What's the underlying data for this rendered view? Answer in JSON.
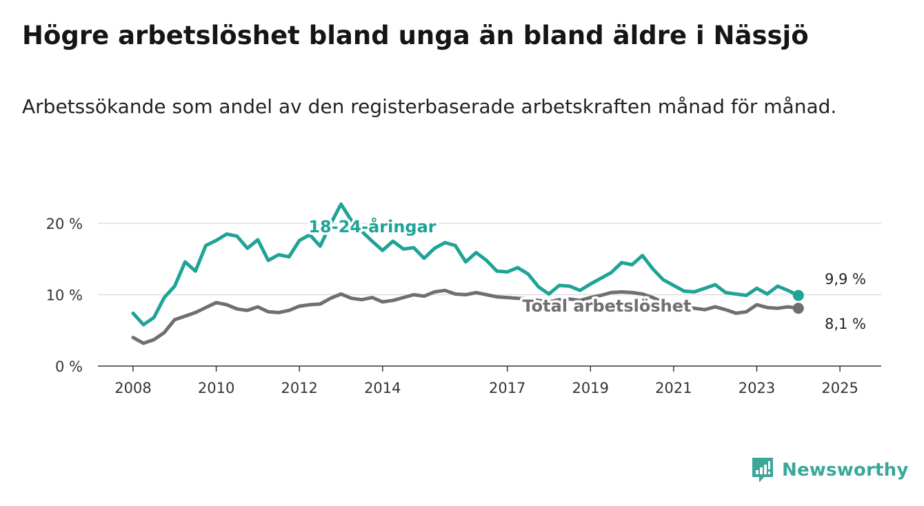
{
  "header": {
    "title": "Högre arbetslöshet bland unga än bland äldre i Nässjö",
    "subtitle": "Arbetssökande som andel av den registerbaserade arbetskraften månad för månad."
  },
  "brand": {
    "name": "Newsworthy",
    "icon": "newsworthy-logo-icon",
    "color": "#3aa79a"
  },
  "chart_data": {
    "type": "line",
    "title": "Högre arbetslöshet bland unga än bland äldre i Nässjö",
    "subtitle": "Arbetssökande som andel av den registerbaserade arbetskraften månad för månad.",
    "xlabel": "",
    "ylabel": "",
    "x_ticks": [
      "2008",
      "2010",
      "2012",
      "2014",
      "2017",
      "2019",
      "2021",
      "2023",
      "2025"
    ],
    "y_ticks": [
      "0 %",
      "10 %",
      "20 %"
    ],
    "ylim": [
      0,
      23
    ],
    "xlim": [
      "2007-05",
      "2025-12"
    ],
    "grid": "horizontal",
    "legend": "inline labels",
    "series": [
      {
        "name": "18-24-åringar",
        "color": "#1fa396",
        "end_label": "9,9 %",
        "points": [
          [
            "2008-01",
            7.4
          ],
          [
            "2008-04",
            5.8
          ],
          [
            "2008-07",
            6.8
          ],
          [
            "2008-10",
            9.6
          ],
          [
            "2009-01",
            11.2
          ],
          [
            "2009-04",
            14.6
          ],
          [
            "2009-07",
            13.3
          ],
          [
            "2009-10",
            16.9
          ],
          [
            "2010-01",
            17.6
          ],
          [
            "2010-04",
            18.5
          ],
          [
            "2010-07",
            18.2
          ],
          [
            "2010-10",
            16.5
          ],
          [
            "2011-01",
            17.7
          ],
          [
            "2011-04",
            14.8
          ],
          [
            "2011-07",
            15.6
          ],
          [
            "2011-10",
            15.3
          ],
          [
            "2012-01",
            17.6
          ],
          [
            "2012-04",
            18.4
          ],
          [
            "2012-07",
            16.8
          ],
          [
            "2012-10",
            19.9
          ],
          [
            "2013-01",
            22.7
          ],
          [
            "2013-04",
            20.4
          ],
          [
            "2013-07",
            18.9
          ],
          [
            "2013-10",
            17.5
          ],
          [
            "2014-01",
            16.2
          ],
          [
            "2014-04",
            17.5
          ],
          [
            "2014-07",
            16.4
          ],
          [
            "2014-10",
            16.6
          ],
          [
            "2015-01",
            15.1
          ],
          [
            "2015-04",
            16.5
          ],
          [
            "2015-07",
            17.3
          ],
          [
            "2015-10",
            16.9
          ],
          [
            "2016-01",
            14.6
          ],
          [
            "2016-04",
            15.9
          ],
          [
            "2016-07",
            14.8
          ],
          [
            "2016-10",
            13.3
          ],
          [
            "2017-01",
            13.2
          ],
          [
            "2017-04",
            13.8
          ],
          [
            "2017-07",
            12.9
          ],
          [
            "2017-10",
            11.1
          ],
          [
            "2018-01",
            10.1
          ],
          [
            "2018-04",
            11.3
          ],
          [
            "2018-07",
            11.2
          ],
          [
            "2018-10",
            10.6
          ],
          [
            "2019-01",
            11.5
          ],
          [
            "2019-04",
            12.3
          ],
          [
            "2019-07",
            13.1
          ],
          [
            "2019-10",
            14.5
          ],
          [
            "2020-01",
            14.2
          ],
          [
            "2020-04",
            15.5
          ],
          [
            "2020-07",
            13.6
          ],
          [
            "2020-10",
            12.1
          ],
          [
            "2021-01",
            11.3
          ],
          [
            "2021-04",
            10.5
          ],
          [
            "2021-07",
            10.4
          ],
          [
            "2021-10",
            10.9
          ],
          [
            "2022-01",
            11.4
          ],
          [
            "2022-04",
            10.3
          ],
          [
            "2022-07",
            10.1
          ],
          [
            "2022-10",
            9.9
          ],
          [
            "2023-01",
            10.9
          ],
          [
            "2023-04",
            10.1
          ],
          [
            "2023-07",
            11.2
          ],
          [
            "2023-10",
            10.6
          ],
          [
            "2024-01",
            9.9
          ]
        ]
      },
      {
        "name": "Total arbetslöshet",
        "color": "#6e6e73",
        "end_label": "8,1 %",
        "points": [
          [
            "2008-01",
            4.0
          ],
          [
            "2008-04",
            3.2
          ],
          [
            "2008-07",
            3.7
          ],
          [
            "2008-10",
            4.7
          ],
          [
            "2009-01",
            6.5
          ],
          [
            "2009-04",
            7.0
          ],
          [
            "2009-07",
            7.5
          ],
          [
            "2009-10",
            8.2
          ],
          [
            "2010-01",
            8.9
          ],
          [
            "2010-04",
            8.6
          ],
          [
            "2010-07",
            8.0
          ],
          [
            "2010-10",
            7.8
          ],
          [
            "2011-01",
            8.3
          ],
          [
            "2011-04",
            7.6
          ],
          [
            "2011-07",
            7.5
          ],
          [
            "2011-10",
            7.8
          ],
          [
            "2012-01",
            8.4
          ],
          [
            "2012-04",
            8.6
          ],
          [
            "2012-07",
            8.7
          ],
          [
            "2012-10",
            9.5
          ],
          [
            "2013-01",
            10.1
          ],
          [
            "2013-04",
            9.5
          ],
          [
            "2013-07",
            9.3
          ],
          [
            "2013-10",
            9.6
          ],
          [
            "2014-01",
            9.0
          ],
          [
            "2014-04",
            9.2
          ],
          [
            "2014-07",
            9.6
          ],
          [
            "2014-10",
            10.0
          ],
          [
            "2015-01",
            9.8
          ],
          [
            "2015-04",
            10.4
          ],
          [
            "2015-07",
            10.6
          ],
          [
            "2015-10",
            10.1
          ],
          [
            "2016-01",
            10.0
          ],
          [
            "2016-04",
            10.3
          ],
          [
            "2016-07",
            10.0
          ],
          [
            "2016-10",
            9.7
          ],
          [
            "2017-01",
            9.6
          ],
          [
            "2017-04",
            9.5
          ],
          [
            "2017-07",
            9.4
          ],
          [
            "2017-10",
            9.2
          ],
          [
            "2018-01",
            9.0
          ],
          [
            "2018-04",
            9.3
          ],
          [
            "2018-07",
            9.4
          ],
          [
            "2018-10",
            9.2
          ],
          [
            "2019-01",
            9.6
          ],
          [
            "2019-04",
            9.9
          ],
          [
            "2019-07",
            10.3
          ],
          [
            "2019-10",
            10.4
          ],
          [
            "2020-01",
            10.3
          ],
          [
            "2020-04",
            10.1
          ],
          [
            "2020-07",
            9.6
          ],
          [
            "2020-10",
            8.9
          ],
          [
            "2021-01",
            8.5
          ],
          [
            "2021-04",
            8.3
          ],
          [
            "2021-07",
            8.1
          ],
          [
            "2021-10",
            7.9
          ],
          [
            "2022-01",
            8.3
          ],
          [
            "2022-04",
            7.9
          ],
          [
            "2022-07",
            7.4
          ],
          [
            "2022-10",
            7.6
          ],
          [
            "2023-01",
            8.6
          ],
          [
            "2023-04",
            8.2
          ],
          [
            "2023-07",
            8.1
          ],
          [
            "2023-10",
            8.3
          ],
          [
            "2024-01",
            8.1
          ]
        ]
      }
    ]
  }
}
